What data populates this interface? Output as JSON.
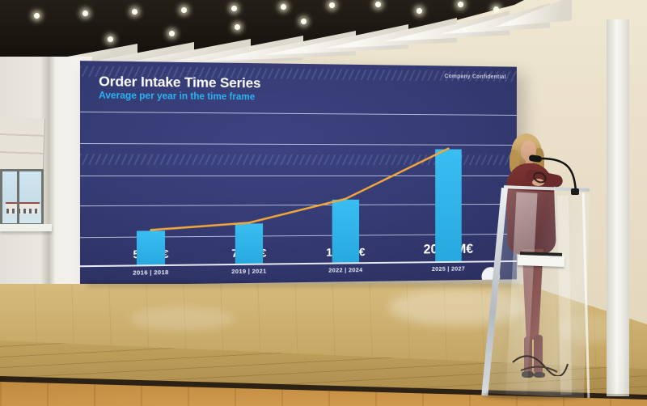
{
  "slide": {
    "confidential_label": "Company Confidential",
    "title": "Order Intake Time Series",
    "subtitle": "Average per year in the time frame",
    "colors": {
      "background": "#343a72",
      "title": "#ffffff",
      "subtitle": "#2ab4f2",
      "bar": "#2eb3e8",
      "trend": "#f2a73b"
    }
  },
  "chart_data": {
    "type": "bar",
    "title": "Order Intake Time Series",
    "subtitle": "Average per year in the time frame",
    "categories": [
      "2016 | 2018",
      "2019 | 2021",
      "2022 | 2024",
      "2025 | 2027"
    ],
    "values": [
      590,
      704,
      1118,
      2010
    ],
    "value_labels": [
      "590M€",
      "704M€",
      "1118M€",
      "2010 M€"
    ],
    "unit": "M€",
    "ylim": [
      0,
      2200
    ],
    "gridlines": 5,
    "legend": "none",
    "trendline": {
      "present": true,
      "color": "#f2a73b",
      "through": "bar tops"
    }
  }
}
